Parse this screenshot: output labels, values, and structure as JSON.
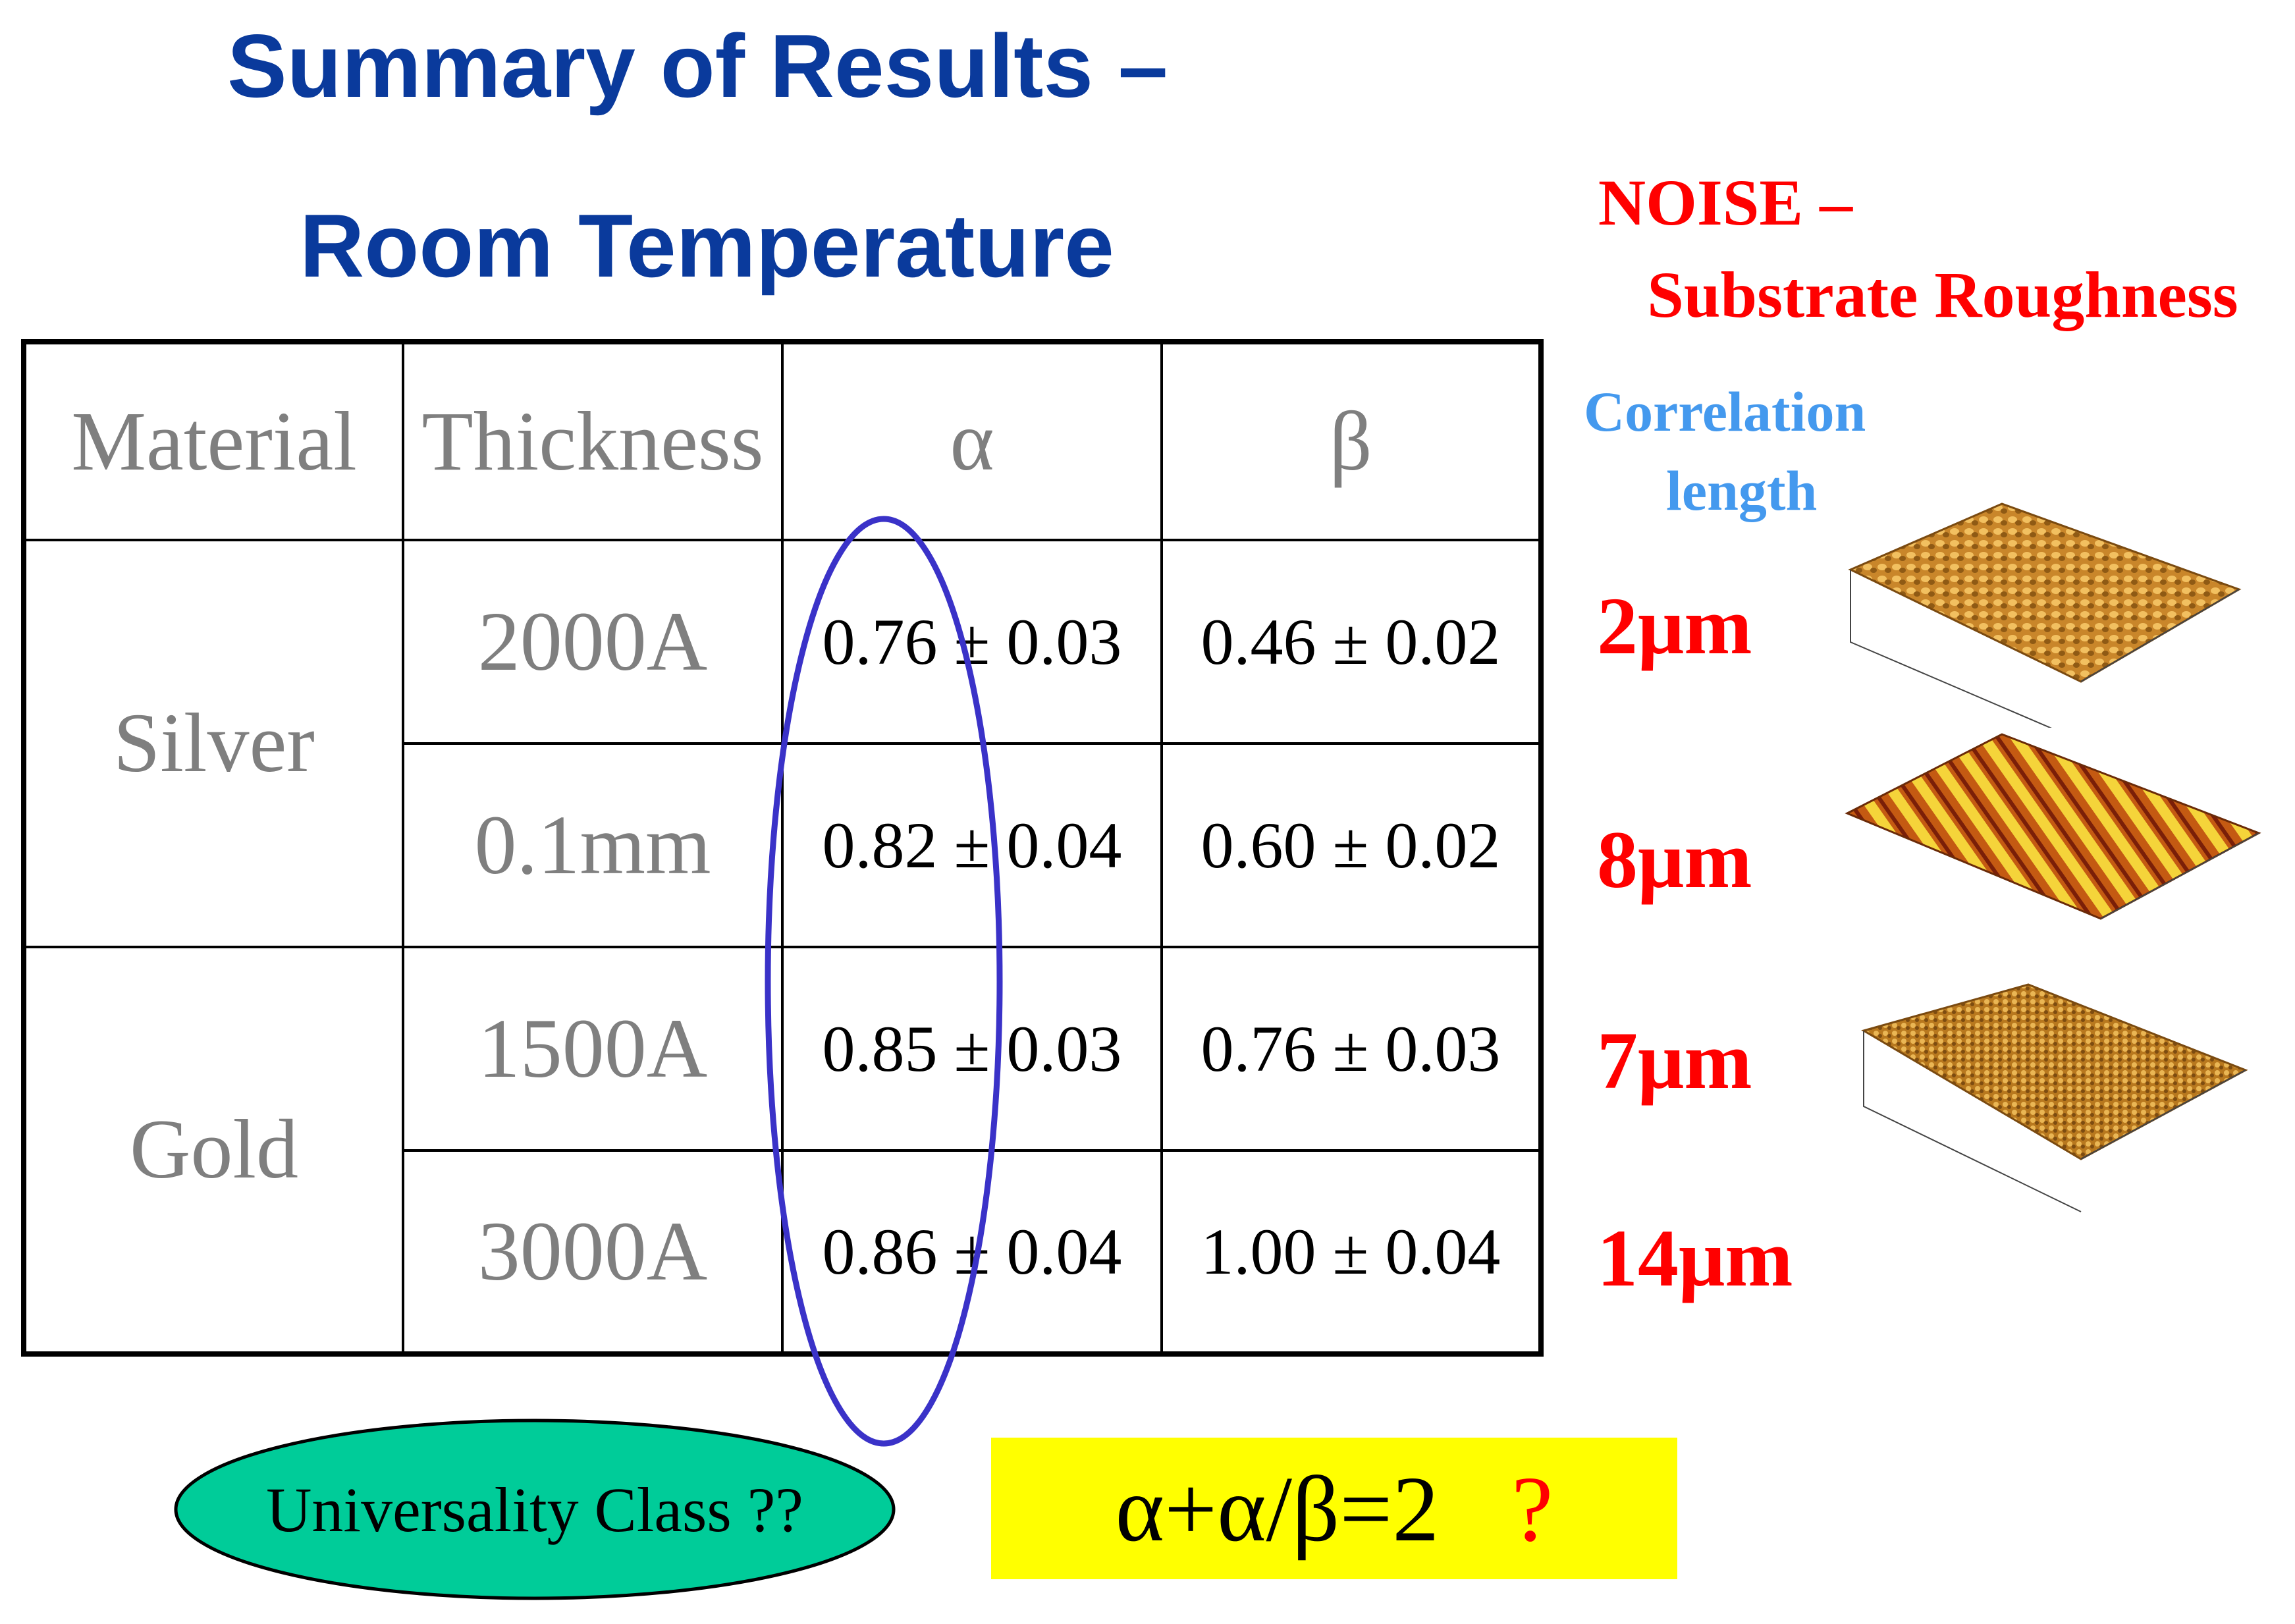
{
  "title": {
    "line1": "Summary of Results –",
    "line2": "Room Temperature"
  },
  "table": {
    "headers": [
      "Material",
      "Thickness",
      "α",
      "β"
    ],
    "groups": [
      {
        "material": "Silver",
        "rows": [
          {
            "thickness": "2000A",
            "alpha": "0.76 ± 0.03",
            "beta": "0.46 ± 0.02"
          },
          {
            "thickness": "0.1mm",
            "alpha": "0.82 ± 0.04",
            "beta": "0.60 ± 0.02"
          }
        ]
      },
      {
        "material": "Gold",
        "rows": [
          {
            "thickness": "1500A",
            "alpha": "0.85 ± 0.03",
            "beta": "0.76 ± 0.03"
          },
          {
            "thickness": "3000A",
            "alpha": "0.86 ± 0.04",
            "beta": "1.00 ± 0.04"
          }
        ]
      }
    ]
  },
  "noise": {
    "line1": "NOISE –",
    "line2": "Substrate Roughness",
    "correlation_line1": "Correlation",
    "correlation_line2": "length",
    "lengths": [
      "2μm",
      "8μm",
      "7μm",
      "14μm"
    ]
  },
  "universality": "Universality Class ??",
  "formula": {
    "expression": "α+α/β=2",
    "question": "?"
  },
  "colors": {
    "title": "#0a3a9c",
    "noise": "#ff0000",
    "correlation": "#4499ee",
    "ellipse_stroke": "#3a32c8",
    "universality_fill": "#00cc99",
    "formula_bg": "#ffff00"
  }
}
